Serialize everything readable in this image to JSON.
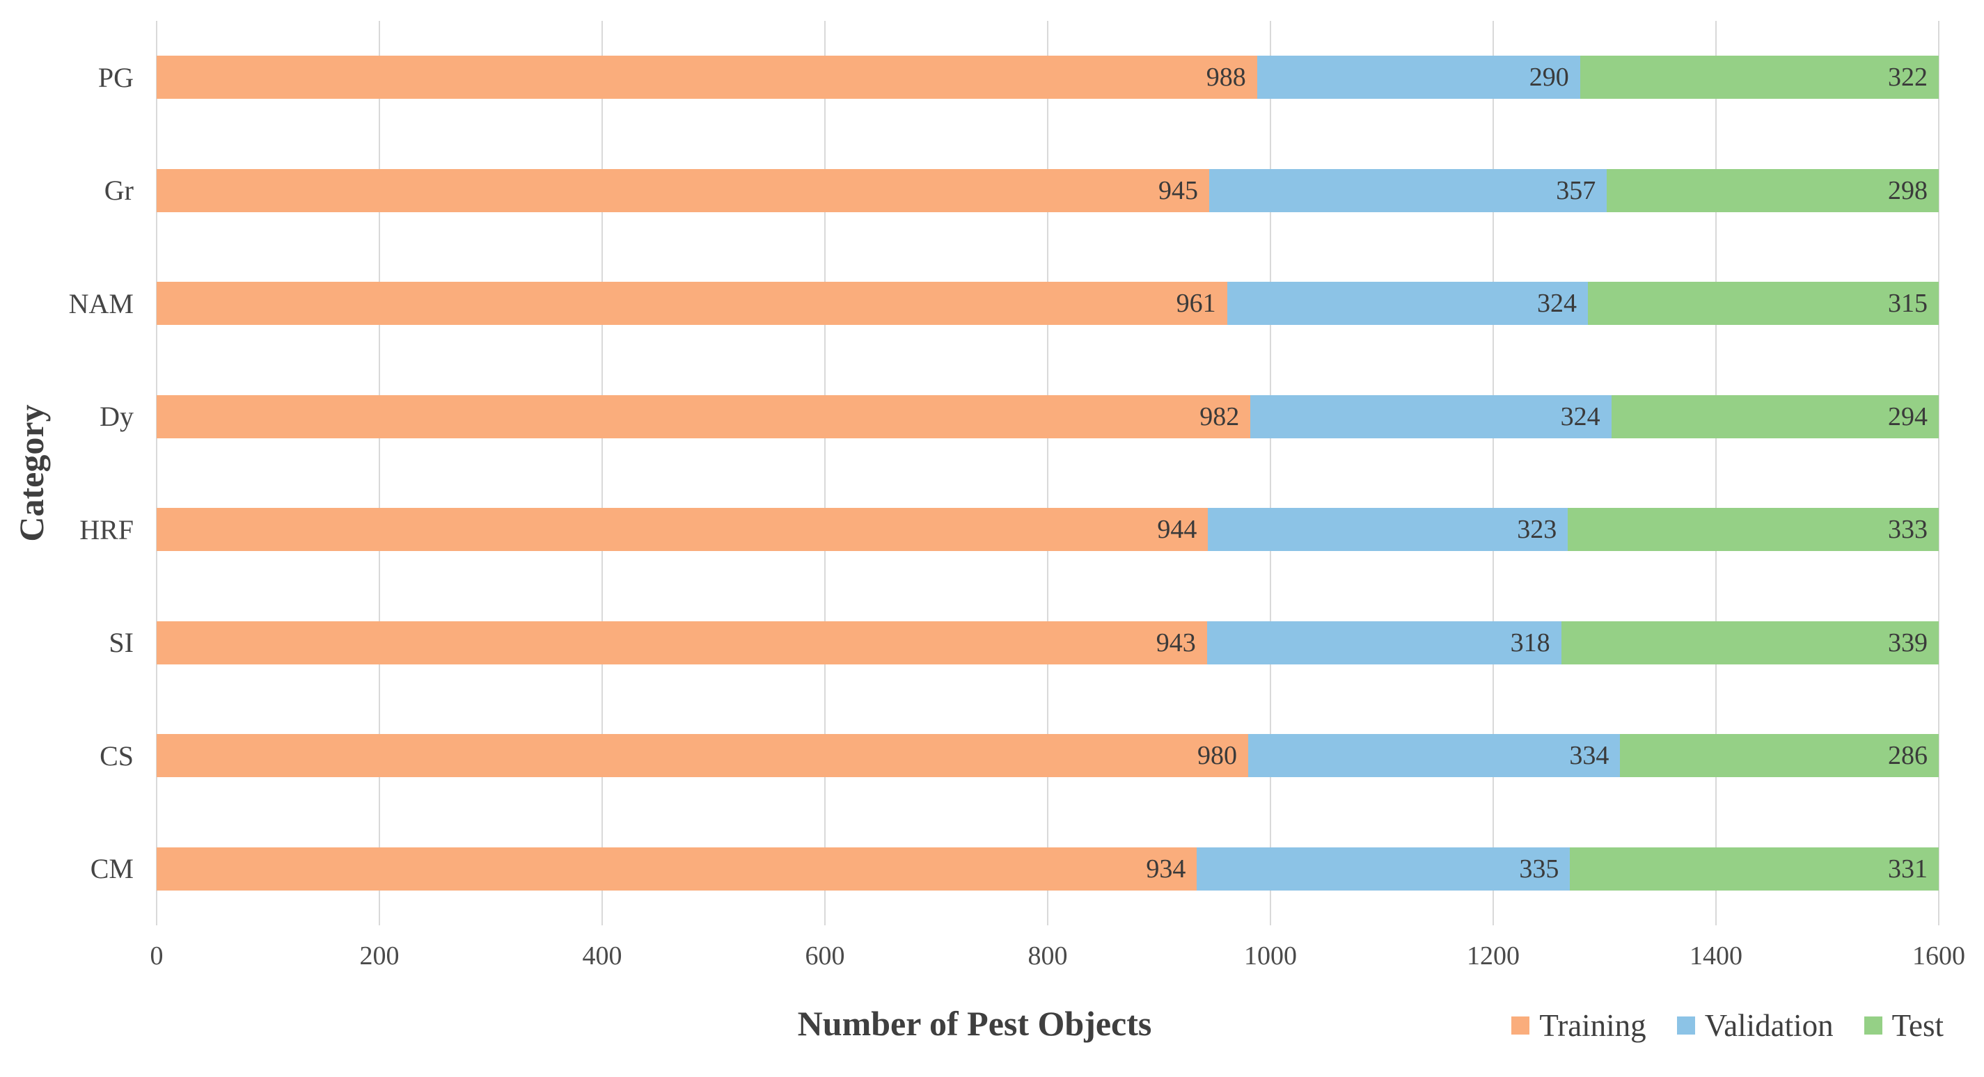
{
  "chart_data": {
    "type": "bar",
    "orientation": "horizontal",
    "stacked": true,
    "title": "",
    "xlabel": "Number of Pest Objects",
    "ylabel": "Category",
    "categories": [
      "PG",
      "Gr",
      "NAM",
      "Dy",
      "HRF",
      "SI",
      "CS",
      "CM"
    ],
    "series": [
      {
        "name": "Training",
        "color": "#FAAD7C",
        "values": [
          988,
          945,
          961,
          982,
          944,
          943,
          980,
          934
        ]
      },
      {
        "name": "Validation",
        "color": "#8CC3E6",
        "values": [
          290,
          357,
          324,
          324,
          323,
          318,
          334,
          335
        ]
      },
      {
        "name": "Test",
        "color": "#95D086",
        "values": [
          322,
          298,
          315,
          294,
          333,
          339,
          286,
          331
        ]
      }
    ],
    "xlim": [
      0,
      1600
    ],
    "xticks": [
      0,
      200,
      400,
      600,
      800,
      1000,
      1200,
      1400,
      1600
    ],
    "grid": true,
    "gridline_color": "#D9D9D9",
    "bar_labels": "inside-end",
    "legend_position": "bottom-right"
  }
}
